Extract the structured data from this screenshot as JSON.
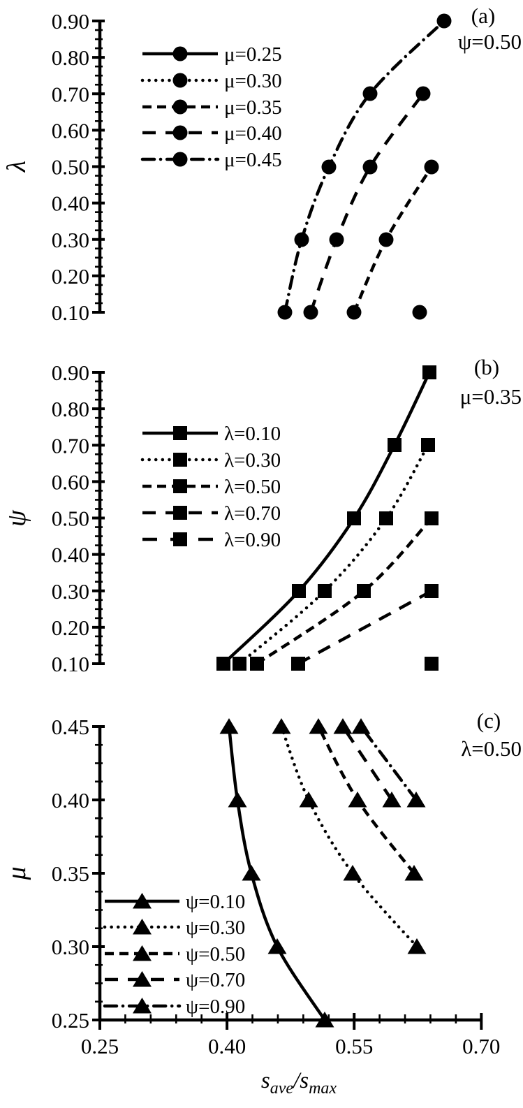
{
  "figure": {
    "background": "#ffffff",
    "ink_color": "#000000",
    "xlabel_rich": [
      {
        "t": "s",
        "style": "main"
      },
      {
        "t": "ave",
        "style": "sub"
      },
      {
        "t": "/s",
        "style": "main"
      },
      {
        "t": "max",
        "style": "sub"
      }
    ],
    "xlabel_plain": "save/smax"
  },
  "chart_data": [
    {
      "id": "a",
      "panel_tag": "(a)",
      "annotation": "ψ=0.50",
      "type": "line",
      "marker": "circle",
      "ylabel": "λ",
      "ylim": [
        0.1,
        0.9
      ],
      "yticks": [
        "0.10",
        "0.20",
        "0.30",
        "0.40",
        "0.50",
        "0.60",
        "0.70",
        "0.80",
        "0.90"
      ],
      "yminor_step": 0.025,
      "xlim": [
        0.25,
        0.7
      ],
      "legend_position": "upper-left-inside",
      "series": [
        {
          "name": "μ=0.25",
          "line": "solid",
          "points": []
        },
        {
          "name": "μ=0.30",
          "line": "dotted",
          "points": [
            [
              0.627,
              0.1
            ]
          ]
        },
        {
          "name": "μ=0.35",
          "line": "dashed",
          "points": [
            [
              0.55,
              0.1
            ],
            [
              0.588,
              0.3
            ],
            [
              0.641,
              0.5
            ]
          ]
        },
        {
          "name": "μ=0.40",
          "line": "long-dash",
          "points": [
            [
              0.499,
              0.1
            ],
            [
              0.529,
              0.3
            ],
            [
              0.569,
              0.5
            ],
            [
              0.631,
              0.7
            ]
          ]
        },
        {
          "name": "μ=0.45",
          "line": "dash-dot",
          "points": [
            [
              0.468,
              0.1
            ],
            [
              0.488,
              0.3
            ],
            [
              0.52,
              0.5
            ],
            [
              0.569,
              0.7
            ],
            [
              0.656,
              0.9
            ]
          ]
        }
      ]
    },
    {
      "id": "b",
      "panel_tag": "(b)",
      "annotation": "μ=0.35",
      "type": "line",
      "marker": "square",
      "ylabel": "ψ",
      "ylim": [
        0.1,
        0.9
      ],
      "yticks": [
        "0.10",
        "0.20",
        "0.30",
        "0.40",
        "0.50",
        "0.60",
        "0.70",
        "0.80",
        "0.90"
      ],
      "yminor_step": 0.025,
      "xlim": [
        0.25,
        0.7
      ],
      "legend_position": "middle-left-inside",
      "series": [
        {
          "name": "λ=0.10",
          "line": "solid",
          "points": [
            [
              0.396,
              0.1
            ],
            [
              0.485,
              0.3
            ],
            [
              0.55,
              0.5
            ],
            [
              0.598,
              0.7
            ],
            [
              0.639,
              0.9
            ]
          ]
        },
        {
          "name": "λ=0.30",
          "line": "dotted",
          "points": [
            [
              0.415,
              0.1
            ],
            [
              0.515,
              0.3
            ],
            [
              0.588,
              0.5
            ],
            [
              0.637,
              0.7
            ]
          ]
        },
        {
          "name": "λ=0.50",
          "line": "dashed",
          "points": [
            [
              0.435,
              0.1
            ],
            [
              0.561,
              0.3
            ],
            [
              0.641,
              0.5
            ]
          ]
        },
        {
          "name": "λ=0.70",
          "line": "long-dash",
          "points": [
            [
              0.484,
              0.1
            ],
            [
              0.641,
              0.3
            ]
          ]
        },
        {
          "name": "λ=0.90",
          "line": "x-long-dash",
          "points": [
            [
              0.641,
              0.1
            ]
          ]
        }
      ]
    },
    {
      "id": "c",
      "panel_tag": "(c)",
      "annotation": "λ=0.50",
      "type": "line",
      "marker": "triangle",
      "ylabel": "μ",
      "ylim": [
        0.25,
        0.45
      ],
      "yticks": [
        "0.25",
        "0.30",
        "0.35",
        "0.40",
        "0.45"
      ],
      "yminor_step": 0.0125,
      "xlim": [
        0.25,
        0.7
      ],
      "xticks": [
        "0.25",
        "0.40",
        "0.55",
        "0.70"
      ],
      "xminor_step": 0.03,
      "legend_position": "lower-left-inside",
      "series": [
        {
          "name": "ψ=0.10",
          "line": "solid",
          "points": [
            [
              0.515,
              0.25
            ],
            [
              0.459,
              0.3
            ],
            [
              0.429,
              0.35
            ],
            [
              0.412,
              0.4
            ],
            [
              0.402,
              0.45
            ]
          ]
        },
        {
          "name": "ψ=0.30",
          "line": "dotted",
          "points": [
            [
              0.624,
              0.3
            ],
            [
              0.548,
              0.35
            ],
            [
              0.496,
              0.4
            ],
            [
              0.464,
              0.45
            ]
          ]
        },
        {
          "name": "ψ=0.50",
          "line": "dashed",
          "points": [
            [
              0.621,
              0.35
            ],
            [
              0.554,
              0.4
            ],
            [
              0.508,
              0.45
            ]
          ]
        },
        {
          "name": "ψ=0.70",
          "line": "long-dash",
          "points": [
            [
              0.594,
              0.4
            ],
            [
              0.537,
              0.45
            ]
          ]
        },
        {
          "name": "ψ=0.90",
          "line": "dash-dot",
          "points": [
            [
              0.623,
              0.4
            ],
            [
              0.558,
              0.45
            ]
          ]
        }
      ]
    }
  ]
}
